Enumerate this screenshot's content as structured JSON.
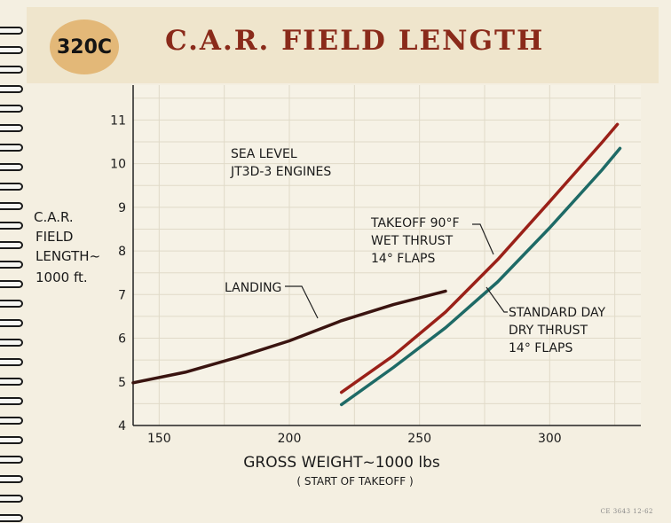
{
  "badge": "320C",
  "title": "C.A.R. FIELD LENGTH",
  "footer": "CE 3643  12-62",
  "chart_data": {
    "type": "line",
    "title": "C.A.R. FIELD LENGTH",
    "xlabel": "GROSS WEIGHT~1000 lbs",
    "xlabel_note": "( START OF TAKEOFF )",
    "ylabel": [
      "C.A.R.",
      "FIELD",
      "LENGTH~",
      "1000 ft."
    ],
    "xlim": [
      140,
      335
    ],
    "ylim": [
      4,
      11.8
    ],
    "x_ticks": [
      150,
      200,
      250,
      300
    ],
    "y_ticks": [
      4,
      5,
      6,
      7,
      8,
      9,
      10,
      11
    ],
    "grid": true,
    "annotation": [
      "SEA LEVEL",
      "JT3D-3 ENGINES"
    ],
    "series": [
      {
        "name": "LANDING",
        "color": "#3a1410",
        "x": [
          140,
          160,
          180,
          200,
          220,
          240,
          260
        ],
        "y": [
          4.98,
          5.22,
          5.56,
          5.94,
          6.4,
          6.77,
          7.08
        ]
      },
      {
        "name": "TAKEOFF 90°F WET THRUST 14° FLAPS",
        "label_lines": [
          "TAKEOFF 90°F",
          "WET THRUST",
          "14° FLAPS"
        ],
        "color": "#9a2018",
        "x": [
          220,
          240,
          260,
          280,
          300,
          320,
          326
        ],
        "y": [
          4.76,
          5.6,
          6.6,
          7.8,
          9.13,
          10.48,
          10.9
        ]
      },
      {
        "name": "STANDARD DAY DRY THRUST 14° FLAPS",
        "label_lines": [
          "STANDARD DAY",
          "DRY THRUST",
          "14° FLAPS"
        ],
        "color": "#1e6a66",
        "x": [
          220,
          240,
          260,
          280,
          300,
          320,
          327
        ],
        "y": [
          4.48,
          5.33,
          6.24,
          7.29,
          8.53,
          9.85,
          10.35
        ]
      }
    ]
  }
}
